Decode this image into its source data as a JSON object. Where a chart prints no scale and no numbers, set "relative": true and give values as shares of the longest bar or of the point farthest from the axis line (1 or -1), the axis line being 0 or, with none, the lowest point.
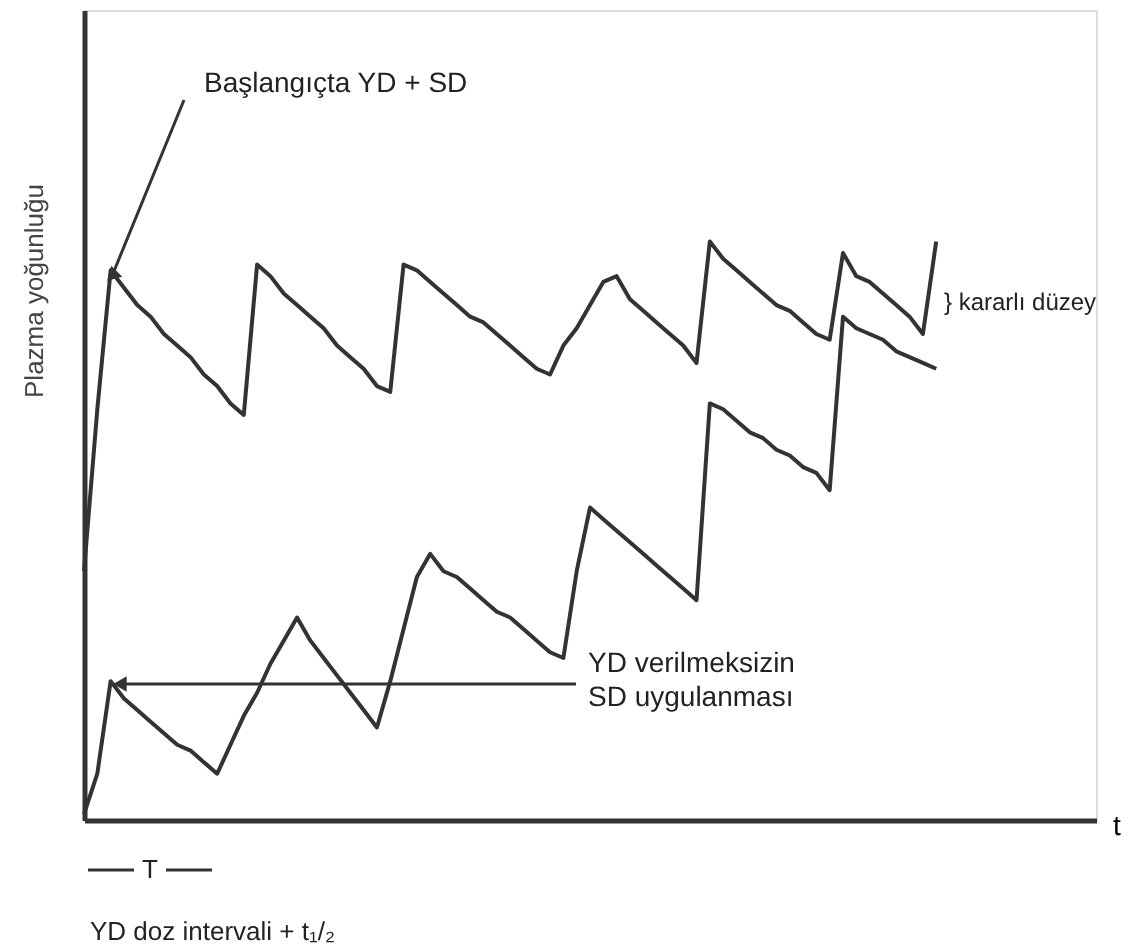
{
  "chart_data": {
    "type": "line",
    "relative": true,
    "ylabel": "Plazma yoğunluğu",
    "xlabel": "t",
    "categories": [
      null,
      null,
      null,
      null,
      null,
      null,
      null,
      null,
      null,
      null,
      null,
      null,
      null,
      null,
      null,
      null,
      null,
      null,
      null,
      null,
      null,
      null,
      null,
      null,
      null,
      null,
      null,
      null,
      null,
      null,
      null,
      null,
      null,
      null,
      null,
      null,
      null,
      null,
      null,
      null,
      null,
      null,
      null,
      null,
      null,
      null,
      null,
      null,
      null,
      null,
      null,
      null,
      null,
      null,
      null,
      null,
      null,
      null,
      null,
      null,
      null,
      null,
      null,
      null,
      null,
      null,
      null,
      null,
      null,
      null,
      null,
      null,
      null,
      null,
      null,
      null,
      null
    ],
    "grid": false,
    "marker": "none",
    "line_style": "solid",
    "series": [
      {
        "color": "#333333",
        "values": [
          0.43,
          0.71,
          0.95,
          0.92,
          0.89,
          0.87,
          0.84,
          0.82,
          0.8,
          0.77,
          0.75,
          0.72,
          0.7,
          0.96,
          0.94,
          0.91,
          0.89,
          0.87,
          0.85,
          0.82,
          0.8,
          0.78,
          0.75,
          0.74,
          0.96,
          0.95,
          0.93,
          0.91,
          0.89,
          0.87,
          0.86,
          0.84,
          0.82,
          0.8,
          0.78,
          0.77,
          0.82,
          0.85,
          0.89,
          0.93,
          0.94,
          0.9,
          0.88,
          0.86,
          0.84,
          0.82,
          0.79,
          1.0,
          0.97,
          0.95,
          0.93,
          0.91,
          0.89,
          0.88,
          0.86,
          0.84,
          0.83,
          0.98,
          0.94,
          0.93,
          0.91,
          0.89,
          0.87,
          0.84,
          1.0,
          null,
          null,
          null,
          null,
          null,
          null,
          null,
          null,
          null,
          null,
          null,
          null
        ]
      },
      {
        "color": "#333333",
        "values": [
          0.01,
          0.08,
          0.24,
          0.21,
          0.19,
          0.17,
          0.15,
          0.13,
          0.12,
          0.1,
          0.08,
          0.13,
          0.18,
          0.22,
          0.27,
          0.31,
          0.35,
          0.31,
          0.28,
          0.25,
          0.22,
          0.19,
          0.16,
          0.24,
          0.33,
          0.42,
          0.46,
          0.43,
          0.42,
          0.4,
          0.38,
          0.36,
          0.35,
          0.33,
          0.31,
          0.29,
          0.28,
          0.43,
          0.54,
          0.52,
          0.5,
          0.48,
          0.46,
          0.44,
          0.42,
          0.4,
          0.38,
          0.72,
          0.71,
          0.69,
          0.67,
          0.66,
          0.64,
          0.63,
          0.61,
          0.6,
          0.57,
          0.87,
          0.85,
          0.84,
          0.83,
          0.81,
          0.8,
          0.79,
          0.78,
          null,
          null,
          null,
          null,
          null,
          null,
          null,
          null,
          null,
          null,
          null,
          null
        ]
      }
    ],
    "annotations": [
      "Başlangıçta YD + SD",
      "YD verilmeksizin\nSD uygulanması",
      "} kararlı düzey",
      "T",
      "YD doz intervali + t₁/₂"
    ]
  }
}
